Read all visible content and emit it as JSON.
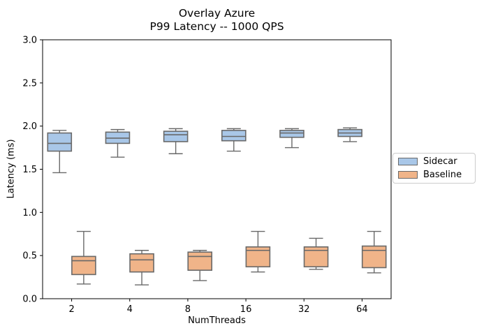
{
  "chart_data": {
    "type": "boxplot",
    "title_line1": "Overlay Azure",
    "title_line2": "P99 Latency -- 1000 QPS",
    "xlabel": "NumThreads",
    "ylabel": "Latency (ms)",
    "categories": [
      "2",
      "4",
      "8",
      "16",
      "32",
      "64"
    ],
    "ylim": [
      0.0,
      3.0
    ],
    "yticks": [
      "0.0",
      "0.5",
      "1.0",
      "1.5",
      "2.0",
      "2.5",
      "3.0"
    ],
    "grid": "off",
    "legend_position": "center-right-outside",
    "box_edge_color": "#696969",
    "spine_color": "#000000",
    "series": [
      {
        "name": "Sidecar",
        "color": "#a9c7e8",
        "boxes": [
          {
            "whislo": 1.46,
            "q1": 1.71,
            "med": 1.8,
            "q3": 1.92,
            "whishi": 1.95
          },
          {
            "whislo": 1.64,
            "q1": 1.8,
            "med": 1.86,
            "q3": 1.93,
            "whishi": 1.96
          },
          {
            "whislo": 1.68,
            "q1": 1.82,
            "med": 1.9,
            "q3": 1.94,
            "whishi": 1.97
          },
          {
            "whislo": 1.71,
            "q1": 1.83,
            "med": 1.88,
            "q3": 1.95,
            "whishi": 1.97
          },
          {
            "whislo": 1.75,
            "q1": 1.87,
            "med": 1.92,
            "q3": 1.95,
            "whishi": 1.97
          },
          {
            "whislo": 1.82,
            "q1": 1.88,
            "med": 1.92,
            "q3": 1.96,
            "whishi": 1.98
          }
        ]
      },
      {
        "name": "Baseline",
        "color": "#f0b489",
        "boxes": [
          {
            "whislo": 0.17,
            "q1": 0.28,
            "med": 0.44,
            "q3": 0.49,
            "whishi": 0.78
          },
          {
            "whislo": 0.16,
            "q1": 0.31,
            "med": 0.45,
            "q3": 0.52,
            "whishi": 0.56
          },
          {
            "whislo": 0.21,
            "q1": 0.33,
            "med": 0.49,
            "q3": 0.54,
            "whishi": 0.56
          },
          {
            "whislo": 0.31,
            "q1": 0.37,
            "med": 0.56,
            "q3": 0.6,
            "whishi": 0.78
          },
          {
            "whislo": 0.34,
            "q1": 0.37,
            "med": 0.56,
            "q3": 0.6,
            "whishi": 0.7
          },
          {
            "whislo": 0.3,
            "q1": 0.36,
            "med": 0.56,
            "q3": 0.61,
            "whishi": 0.78
          }
        ]
      }
    ]
  }
}
